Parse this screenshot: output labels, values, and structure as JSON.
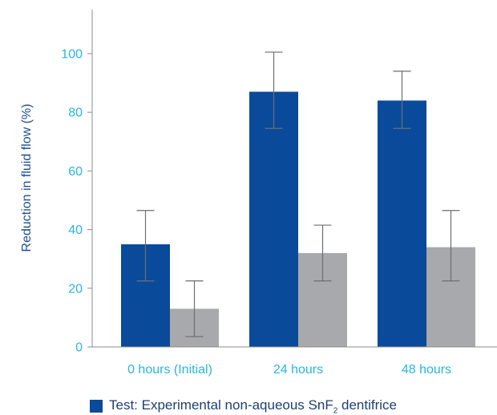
{
  "chart_data": {
    "type": "bar",
    "categories": [
      "0 hours (Initial)",
      "24 hours",
      "48 hours"
    ],
    "series": [
      {
        "name": "Test: Experimental non-aqueous SnF₂ dentifrice",
        "color": "#0a4a9b",
        "values": [
          35,
          87,
          84
        ],
        "err_low": [
          22.5,
          74.5,
          74.5
        ],
        "err_high": [
          46.5,
          100.5,
          94
        ]
      },
      {
        "color": "#a7a9ac",
        "values": [
          13,
          32,
          34
        ],
        "err_low": [
          3.5,
          22.5,
          22.5
        ],
        "err_high": [
          22.5,
          41.5,
          46.5
        ]
      }
    ],
    "title": "",
    "xlabel": "",
    "ylabel": "Reduction in fluid flow (%)",
    "ylim": [
      0,
      115
    ],
    "yticks": [
      0,
      20,
      40,
      60,
      80,
      100
    ],
    "grid": false,
    "legend": "bottom",
    "axis_color": "#8a8c8e",
    "errorbar_color": "#6d6e70",
    "tick_color": "#29b6e0"
  },
  "legend": {
    "text_main": "Test: Experimental non-aqueous SnF",
    "text_sub": "2",
    "text_tail": " dentifrice"
  }
}
